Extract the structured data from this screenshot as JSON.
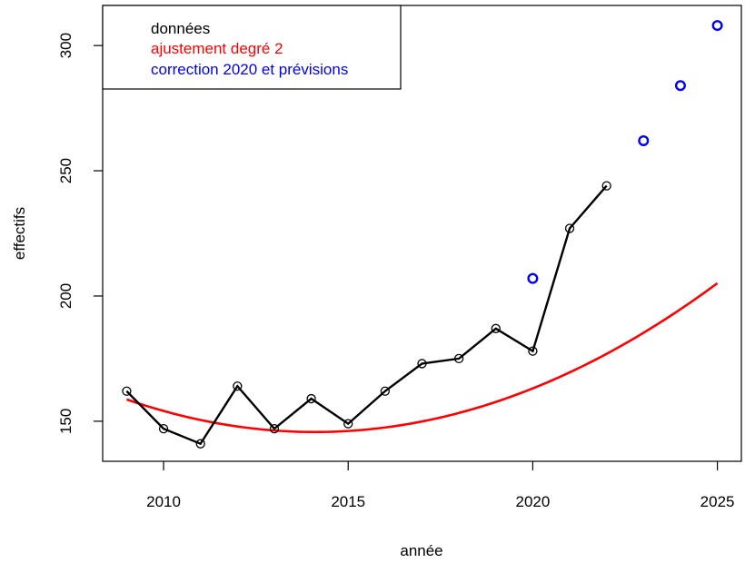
{
  "chart_data": {
    "type": "line",
    "title": "",
    "xlabel": "année",
    "ylabel": "effectifs",
    "xlim": [
      2008.35,
      2025.65
    ],
    "ylim": [
      134,
      316
    ],
    "x_ticks": [
      2010,
      2015,
      2020,
      2025
    ],
    "y_ticks": [
      150,
      200,
      250,
      300
    ],
    "grid": false,
    "legend_position": "top-left",
    "legend": [
      {
        "label": "données",
        "color": "#000000"
      },
      {
        "label": "ajustement degré 2",
        "color": "#ff0000"
      },
      {
        "label": "correction 2020 et prévisions",
        "color": "#0000ff"
      }
    ],
    "series": [
      {
        "name": "données",
        "color": "#000000",
        "style": "line+points",
        "x": [
          2009,
          2010,
          2011,
          2012,
          2013,
          2014,
          2015,
          2016,
          2017,
          2018,
          2019,
          2020,
          2021,
          2022
        ],
        "y": [
          162,
          147,
          141,
          164,
          147,
          159,
          149,
          162,
          173,
          175,
          187,
          178,
          227,
          244
        ]
      },
      {
        "name": "ajustement degré 2",
        "color": "#ff0000",
        "style": "curve",
        "coefficients_year_offset": 2009,
        "poly": [
          158.7,
          -5.1,
          0.5
        ],
        "x_range": [
          2009,
          2025
        ]
      },
      {
        "name": "correction 2020 et prévisions",
        "color": "#0000ff",
        "style": "points",
        "x": [
          2020,
          2023,
          2024,
          2025
        ],
        "y": [
          207,
          262,
          284,
          308
        ]
      }
    ]
  }
}
